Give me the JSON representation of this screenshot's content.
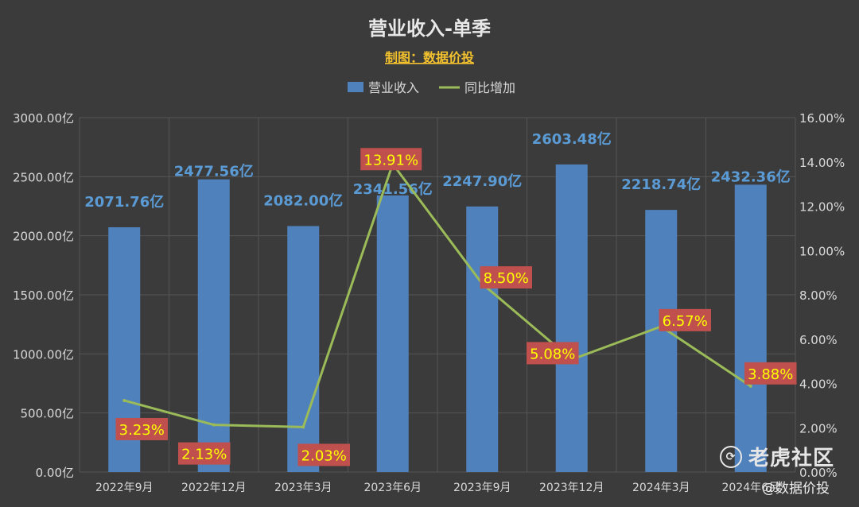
{
  "chart_data": {
    "type": "bar",
    "title": "营业收入-单季",
    "subtitle": "制图：数据价投",
    "categories": [
      "2022年9月",
      "2022年12月",
      "2023年3月",
      "2023年6月",
      "2023年9月",
      "2023年12月",
      "2024年3月",
      "2024年6月"
    ],
    "series": [
      {
        "name": "营业收入",
        "kind": "bar",
        "axis": "left",
        "values": [
          2071.76,
          2477.56,
          2082.0,
          2341.56,
          2247.9,
          2603.48,
          2218.74,
          2432.36
        ],
        "labels": [
          "2071.76亿",
          "2477.56亿",
          "2082.00亿",
          "2341.56亿",
          "2247.90亿",
          "2603.48亿",
          "2218.74亿",
          "2432.36亿"
        ],
        "color": "#4f81bd"
      },
      {
        "name": "同比增加",
        "kind": "line",
        "axis": "right",
        "values": [
          3.23,
          2.13,
          2.03,
          13.91,
          8.5,
          5.08,
          6.57,
          3.88
        ],
        "labels": [
          "3.23%",
          "2.13%",
          "2.03%",
          "13.91%",
          "8.50%",
          "5.08%",
          "6.57%",
          "3.88%"
        ],
        "color": "#9bbb59"
      }
    ],
    "ylim_left": [
      0,
      3000
    ],
    "ylim_right": [
      0,
      16
    ],
    "left_ticks": [
      "0.00亿",
      "500.00亿",
      "1000.00亿",
      "1500.00亿",
      "2000.00亿",
      "2500.00亿",
      "3000.00亿"
    ],
    "right_ticks": [
      "0.00%",
      "2.00%",
      "4.00%",
      "6.00%",
      "8.00%",
      "10.00%",
      "12.00%",
      "14.00%",
      "16.00%"
    ],
    "grid": true,
    "legend_position": "top-center"
  },
  "colors": {
    "background": "#3b3b3b",
    "title": "#e8e8e8",
    "subtitle": "#f2c12e",
    "bar": "#4f81bd",
    "bar_label": "#5b9bd5",
    "line": "#9bbb59",
    "pct_box": "#c0504d",
    "pct_text": "#ffff00",
    "axis_text": "#d9d9d9",
    "grid": "#555555"
  },
  "watermark": {
    "brand": "老虎社区",
    "handle": "@数据价投",
    "icon": "tiger-logo-icon"
  }
}
